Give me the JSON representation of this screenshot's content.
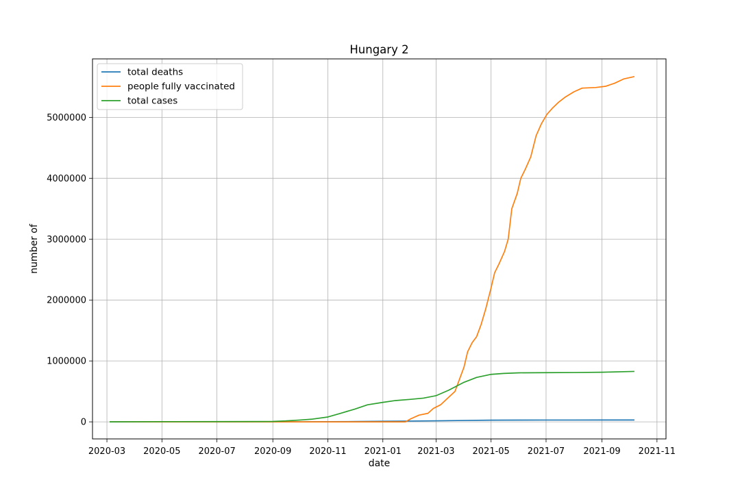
{
  "chart_data": {
    "type": "line",
    "title": "Hungary 2",
    "xlabel": "date",
    "ylabel": "number of",
    "grid": true,
    "legend_position": "top-left",
    "xlim": [
      "2020-02-14",
      "2021-11-11"
    ],
    "ylim": [
      -280000,
      5960000
    ],
    "x_ticks": [
      "2020-03",
      "2020-05",
      "2020-07",
      "2020-09",
      "2020-11",
      "2021-01",
      "2021-03",
      "2021-05",
      "2021-07",
      "2021-09",
      "2021-11"
    ],
    "y_ticks": [
      0,
      1000000,
      2000000,
      3000000,
      4000000,
      5000000
    ],
    "y_tick_labels": [
      "0",
      "1000000",
      "2000000",
      "3000000",
      "4000000",
      "5000000"
    ],
    "series": [
      {
        "name": "total deaths",
        "color": "#1f77b4",
        "points": [
          [
            "2020-03-04",
            0
          ],
          [
            "2020-05-01",
            400
          ],
          [
            "2020-07-01",
            600
          ],
          [
            "2020-09-01",
            700
          ],
          [
            "2020-10-01",
            1000
          ],
          [
            "2020-11-01",
            2500
          ],
          [
            "2020-12-01",
            5500
          ],
          [
            "2021-01-01",
            9500
          ],
          [
            "2021-02-01",
            13000
          ],
          [
            "2021-03-01",
            17000
          ],
          [
            "2021-04-01",
            23000
          ],
          [
            "2021-05-01",
            28000
          ],
          [
            "2021-06-01",
            29500
          ],
          [
            "2021-07-01",
            30000
          ],
          [
            "2021-08-01",
            30100
          ],
          [
            "2021-09-01",
            30200
          ],
          [
            "2021-10-07",
            30300
          ]
        ]
      },
      {
        "name": "people fully vaccinated",
        "color": "#ff7f0e",
        "points": [
          [
            "2020-03-04",
            0
          ],
          [
            "2021-01-26",
            0
          ],
          [
            "2021-02-01",
            50000
          ],
          [
            "2021-02-10",
            110000
          ],
          [
            "2021-02-20",
            140000
          ],
          [
            "2021-02-26",
            220000
          ],
          [
            "2021-03-06",
            280000
          ],
          [
            "2021-03-14",
            390000
          ],
          [
            "2021-03-22",
            500000
          ],
          [
            "2021-03-27",
            700000
          ],
          [
            "2021-04-01",
            900000
          ],
          [
            "2021-04-05",
            1150000
          ],
          [
            "2021-04-10",
            1300000
          ],
          [
            "2021-04-15",
            1400000
          ],
          [
            "2021-04-20",
            1600000
          ],
          [
            "2021-04-25",
            1850000
          ],
          [
            "2021-05-01",
            2200000
          ],
          [
            "2021-05-05",
            2450000
          ],
          [
            "2021-05-10",
            2600000
          ],
          [
            "2021-05-16",
            2800000
          ],
          [
            "2021-05-20",
            3000000
          ],
          [
            "2021-05-24",
            3500000
          ],
          [
            "2021-05-30",
            3750000
          ],
          [
            "2021-06-03",
            4000000
          ],
          [
            "2021-06-08",
            4150000
          ],
          [
            "2021-06-14",
            4350000
          ],
          [
            "2021-06-20",
            4700000
          ],
          [
            "2021-06-26",
            4900000
          ],
          [
            "2021-07-02",
            5050000
          ],
          [
            "2021-07-08",
            5150000
          ],
          [
            "2021-07-15",
            5250000
          ],
          [
            "2021-07-22",
            5330000
          ],
          [
            "2021-08-01",
            5420000
          ],
          [
            "2021-08-10",
            5480000
          ],
          [
            "2021-08-25",
            5490000
          ],
          [
            "2021-09-05",
            5510000
          ],
          [
            "2021-09-15",
            5560000
          ],
          [
            "2021-09-25",
            5630000
          ],
          [
            "2021-10-07",
            5670000
          ]
        ]
      },
      {
        "name": "total cases",
        "color": "#2ca02c",
        "points": [
          [
            "2020-03-04",
            0
          ],
          [
            "2020-05-01",
            3000
          ],
          [
            "2020-07-01",
            4200
          ],
          [
            "2020-08-15",
            5000
          ],
          [
            "2020-09-01",
            7000
          ],
          [
            "2020-09-15",
            15000
          ],
          [
            "2020-10-01",
            30000
          ],
          [
            "2020-10-15",
            45000
          ],
          [
            "2020-11-01",
            80000
          ],
          [
            "2020-11-15",
            140000
          ],
          [
            "2020-12-01",
            210000
          ],
          [
            "2020-12-15",
            280000
          ],
          [
            "2021-01-01",
            320000
          ],
          [
            "2021-01-15",
            350000
          ],
          [
            "2021-02-01",
            370000
          ],
          [
            "2021-02-15",
            390000
          ],
          [
            "2021-03-01",
            430000
          ],
          [
            "2021-03-15",
            520000
          ],
          [
            "2021-04-01",
            650000
          ],
          [
            "2021-04-15",
            730000
          ],
          [
            "2021-05-01",
            780000
          ],
          [
            "2021-05-15",
            795000
          ],
          [
            "2021-06-01",
            805000
          ],
          [
            "2021-07-01",
            808000
          ],
          [
            "2021-08-01",
            810000
          ],
          [
            "2021-09-01",
            815000
          ],
          [
            "2021-10-07",
            828000
          ]
        ]
      }
    ]
  }
}
